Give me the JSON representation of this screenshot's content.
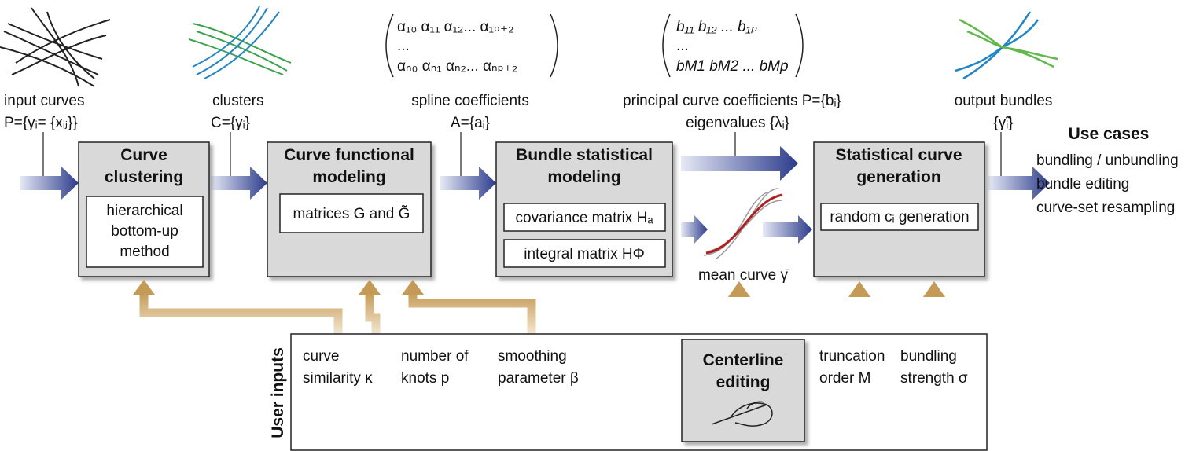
{
  "flows": [
    {
      "label": "input curves",
      "symbol": "P={γᵢ= {xᵢⱼ}}"
    },
    {
      "label": "clusters",
      "symbol": "C={γᵢ}"
    },
    {
      "label": "spline coefficients",
      "symbol": "A={aᵢ}"
    },
    {
      "label": "principal curve coefficients P={bᵢ}",
      "symbol": "eigenvalues {λᵢ}"
    },
    {
      "label": "output bundles",
      "symbol": "{γ̃ᵢ}"
    }
  ],
  "matrices": [
    {
      "rows": [
        "α₁₀ α₁₁ α₁₂... α₁ₚ₊₂",
        "...",
        "αₙ₀ αₙ₁ αₙ₂... αₙₚ₊₂"
      ]
    },
    {
      "rows": [
        "b₁₁  b₁₂  ...  b₁ₚ",
        "...",
        "bM1 bM2 ... bMp"
      ]
    }
  ],
  "stages": [
    {
      "title": [
        "Curve",
        "clustering"
      ],
      "methods": [
        [
          "hierarchical",
          "bottom-up",
          "method"
        ]
      ]
    },
    {
      "title": [
        "Curve functional",
        "modeling"
      ],
      "methods": [
        [
          "matrices G and G̃"
        ]
      ]
    },
    {
      "title": [
        "Bundle statistical",
        "modeling"
      ],
      "methods": [
        [
          "covariance matrix Hₐ"
        ],
        [
          "integral matrix HΦ"
        ]
      ]
    },
    {
      "title": [
        "Statistical curve",
        "generation"
      ],
      "methods": [
        [
          "random cᵢ generation"
        ]
      ]
    }
  ],
  "mean_curve": "mean curve γ̄",
  "use_cases": {
    "title": "Use cases",
    "items": [
      "bundling / unbundling",
      "bundle editing",
      "curve-set resampling"
    ]
  },
  "user_inputs": {
    "title": "User inputs",
    "params": [
      [
        "curve",
        "similarity κ"
      ],
      [
        "number of",
        "knots p"
      ],
      [
        "smoothing",
        "parameter β"
      ],
      [
        "truncation",
        "order M"
      ],
      [
        "bundling",
        "strength σ"
      ]
    ],
    "centerline": [
      "Centerline",
      "editing"
    ]
  }
}
